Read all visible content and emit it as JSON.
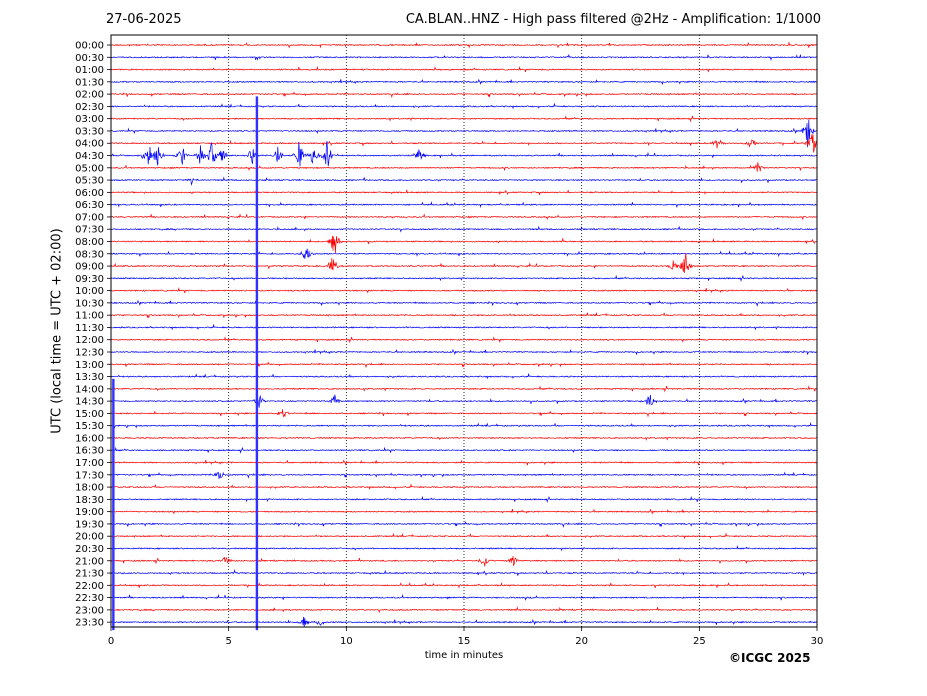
{
  "header": {
    "date": "27-06-2025",
    "title": "CA.BLAN..HNZ - High pass filtered @2Hz - Amplification: 1/1000"
  },
  "footer": {
    "copyright": "©ICGC 2025"
  },
  "chart_data": {
    "type": "line",
    "title": "CA.BLAN..HNZ - High pass filtered @2Hz - Amplification: 1/1000",
    "xlabel": "time in minutes",
    "ylabel": "UTC (local time = UTC + 02:00)",
    "xlim": [
      0,
      30
    ],
    "xticks": [
      0,
      5,
      10,
      15,
      20,
      25,
      30
    ],
    "vertical_gridlines": [
      5,
      10,
      15,
      20,
      25
    ],
    "rows": [
      "00:00",
      "00:30",
      "01:00",
      "01:30",
      "02:00",
      "02:30",
      "03:00",
      "03:30",
      "04:00",
      "04:30",
      "05:00",
      "05:30",
      "06:00",
      "06:30",
      "07:00",
      "07:30",
      "08:00",
      "08:30",
      "09:00",
      "09:30",
      "10:00",
      "10:30",
      "11:00",
      "11:30",
      "12:00",
      "12:30",
      "13:00",
      "13:30",
      "14:00",
      "14:30",
      "15:00",
      "15:30",
      "16:00",
      "16:30",
      "17:00",
      "17:30",
      "18:00",
      "18:30",
      "19:00",
      "19:30",
      "20:00",
      "20:30",
      "21:00",
      "21:30",
      "22:00",
      "22:30",
      "23:00",
      "23:30"
    ],
    "row_colors": [
      "#ff0000",
      "#0000ff"
    ],
    "events": [
      {
        "row": "03:30",
        "minute": 29.6,
        "amp": 1.4
      },
      {
        "row": "04:00",
        "minute": 29.8,
        "amp": 1.2
      },
      {
        "row": "04:00",
        "minute": 27.2,
        "amp": 0.6
      },
      {
        "row": "04:00",
        "minute": 25.8,
        "amp": 0.5
      },
      {
        "row": "04:30",
        "minute": 1.6,
        "amp": 1.1
      },
      {
        "row": "04:30",
        "minute": 2.0,
        "amp": 0.9
      },
      {
        "row": "04:30",
        "minute": 3.0,
        "amp": 1.0
      },
      {
        "row": "04:30",
        "minute": 3.8,
        "amp": 0.8
      },
      {
        "row": "04:30",
        "minute": 4.3,
        "amp": 1.2
      },
      {
        "row": "04:30",
        "minute": 4.7,
        "amp": 1.0
      },
      {
        "row": "04:30",
        "minute": 6.0,
        "amp": 0.7
      },
      {
        "row": "04:30",
        "minute": 7.1,
        "amp": 0.8
      },
      {
        "row": "04:30",
        "minute": 8.0,
        "amp": 1.3
      },
      {
        "row": "04:30",
        "minute": 8.6,
        "amp": 0.9
      },
      {
        "row": "04:30",
        "minute": 9.2,
        "amp": 1.4
      },
      {
        "row": "04:30",
        "minute": 13.1,
        "amp": 0.6
      },
      {
        "row": "05:00",
        "minute": 27.5,
        "amp": 0.5
      },
      {
        "row": "05:30",
        "minute": 3.4,
        "amp": 0.4
      },
      {
        "row": "08:00",
        "minute": 9.5,
        "amp": 1.3
      },
      {
        "row": "08:30",
        "minute": 8.3,
        "amp": 0.9
      },
      {
        "row": "09:00",
        "minute": 9.4,
        "amp": 0.8
      },
      {
        "row": "09:00",
        "minute": 23.9,
        "amp": 0.6
      },
      {
        "row": "09:00",
        "minute": 24.4,
        "amp": 1.3
      },
      {
        "row": "14:30",
        "minute": 6.3,
        "amp": 0.7
      },
      {
        "row": "14:30",
        "minute": 9.5,
        "amp": 0.7
      },
      {
        "row": "14:30",
        "minute": 22.9,
        "amp": 0.7
      },
      {
        "row": "15:00",
        "minute": 7.3,
        "amp": 0.5
      },
      {
        "row": "17:30",
        "minute": 4.6,
        "amp": 0.5
      },
      {
        "row": "21:00",
        "minute": 4.9,
        "amp": 0.5
      },
      {
        "row": "21:00",
        "minute": 15.9,
        "amp": 0.6
      },
      {
        "row": "21:00",
        "minute": 17.1,
        "amp": 0.5
      },
      {
        "row": "23:30",
        "minute": 8.2,
        "amp": 0.5
      },
      {
        "row": "23:30",
        "minute": 8.9,
        "amp": 0.4
      }
    ],
    "spikes": [
      {
        "minute": 6.2,
        "from": "02:30",
        "to": "23:30"
      },
      {
        "minute": 0.1,
        "from": "14:00",
        "to": "23:30"
      }
    ]
  }
}
